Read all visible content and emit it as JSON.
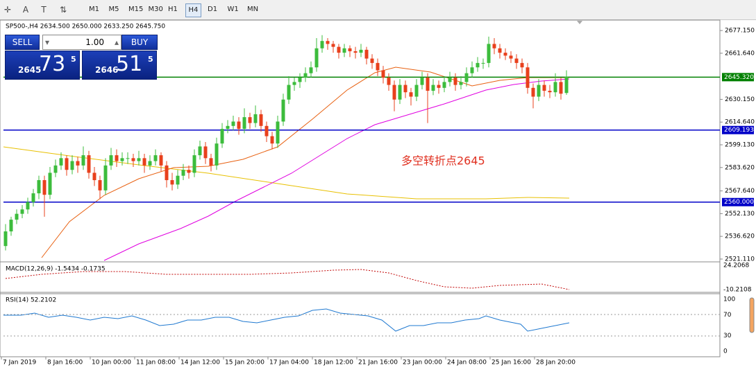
{
  "toolbar": {
    "timeframes": [
      "M1",
      "M5",
      "M15",
      "M30",
      "H1",
      "H4",
      "D1",
      "W1",
      "MN"
    ],
    "selected": "H4"
  },
  "trade_panel": {
    "sell": "SELL",
    "buy": "BUY",
    "lot": "1.00",
    "bid": {
      "big": "2645",
      "main": "73",
      "small": "5"
    },
    "ask": {
      "big": "2646",
      "main": "51",
      "small": "5"
    }
  },
  "chart_data": {
    "type": "candlestick",
    "title": "SP500-,H4  2634.500 2650.000 2633.250 2645.750",
    "up_color": "#3cbc3c",
    "down_color": "#e8401c",
    "ylim": [
      2519.2,
      2683.8
    ],
    "yticks": [
      {
        "value": 2677.15,
        "label": "2677.150"
      },
      {
        "value": 2661.64,
        "label": "2661.640"
      },
      {
        "value": 2630.15,
        "label": "2630.150"
      },
      {
        "value": 2614.64,
        "label": "2614.640"
      },
      {
        "value": 2599.13,
        "label": "2599.130"
      },
      {
        "value": 2583.62,
        "label": "2583.620"
      },
      {
        "value": 2567.64,
        "label": "2567.640"
      },
      {
        "value": 2552.13,
        "label": "2552.130"
      },
      {
        "value": 2536.62,
        "label": "2536.620"
      },
      {
        "value": 2521.11,
        "label": "2521.110"
      }
    ],
    "x_labels": [
      "7 Jan 2019",
      "8 Jan 16:00",
      "10 Jan 00:00",
      "11 Jan 08:00",
      "14 Jan 12:00",
      "15 Jan 20:00",
      "17 Jan 04:00",
      "18 Jan 12:00",
      "21 Jan 16:00",
      "23 Jan 00:00",
      "24 Jan 08:00",
      "25 Jan 16:00",
      "28 Jan 20:00"
    ],
    "levels": [
      {
        "value": 2645.32,
        "label": "2645.320",
        "color": "#008000"
      },
      {
        "value": 2609.193,
        "label": "2609.193",
        "color": "#0000c8"
      },
      {
        "value": 2560,
        "label": "2560.000",
        "color": "#0000c8"
      }
    ],
    "annotation": "多空转折点2645",
    "ohlc": [
      [
        2530,
        2545,
        2527,
        2540
      ],
      [
        2540,
        2550,
        2537,
        2548
      ],
      [
        2548,
        2555,
        2545,
        2552
      ],
      [
        2552,
        2558,
        2549,
        2555
      ],
      [
        2555,
        2563,
        2552,
        2560
      ],
      [
        2560,
        2569,
        2557,
        2566
      ],
      [
        2566,
        2578,
        2562,
        2575
      ],
      [
        2575,
        2578,
        2550,
        2565
      ],
      [
        2565,
        2584,
        2562,
        2580
      ],
      [
        2580,
        2589,
        2577,
        2585
      ],
      [
        2585,
        2594,
        2582,
        2590
      ],
      [
        2590,
        2592,
        2578,
        2582
      ],
      [
        2582,
        2592,
        2579,
        2588
      ],
      [
        2588,
        2591,
        2580,
        2585
      ],
      [
        2585,
        2598,
        2582,
        2592
      ],
      [
        2592,
        2595,
        2576,
        2580
      ],
      [
        2580,
        2584,
        2571,
        2575
      ],
      [
        2575,
        2578,
        2562,
        2568
      ],
      [
        2568,
        2590,
        2565,
        2585
      ],
      [
        2585,
        2597,
        2582,
        2592
      ],
      [
        2592,
        2596,
        2584,
        2588
      ],
      [
        2588,
        2594,
        2585,
        2590
      ],
      [
        2590,
        2594,
        2586,
        2590
      ],
      [
        2590,
        2593,
        2584,
        2588
      ],
      [
        2588,
        2595,
        2585,
        2590
      ],
      [
        2590,
        2593,
        2580,
        2585
      ],
      [
        2585,
        2592,
        2582,
        2588
      ],
      [
        2588,
        2596,
        2585,
        2592
      ],
      [
        2592,
        2594,
        2581,
        2585
      ],
      [
        2585,
        2588,
        2570,
        2575
      ],
      [
        2575,
        2580,
        2568,
        2572
      ],
      [
        2572,
        2582,
        2569,
        2578
      ],
      [
        2578,
        2586,
        2575,
        2582
      ],
      [
        2582,
        2585,
        2576,
        2580
      ],
      [
        2580,
        2596,
        2577,
        2592
      ],
      [
        2592,
        2602,
        2589,
        2598
      ],
      [
        2598,
        2601,
        2586,
        2590
      ],
      [
        2590,
        2593,
        2581,
        2585
      ],
      [
        2585,
        2604,
        2582,
        2600
      ],
      [
        2600,
        2614,
        2597,
        2610
      ],
      [
        2610,
        2616,
        2607,
        2612
      ],
      [
        2612,
        2619,
        2609,
        2615
      ],
      [
        2615,
        2618,
        2606,
        2610
      ],
      [
        2610,
        2624,
        2607,
        2618
      ],
      [
        2618,
        2621,
        2610,
        2614
      ],
      [
        2614,
        2626,
        2611,
        2620
      ],
      [
        2620,
        2623,
        2608,
        2612
      ],
      [
        2612,
        2615,
        2601,
        2605
      ],
      [
        2605,
        2608,
        2596,
        2600
      ],
      [
        2600,
        2619,
        2597,
        2615
      ],
      [
        2615,
        2634,
        2612,
        2630
      ],
      [
        2630,
        2646,
        2627,
        2640
      ],
      [
        2640,
        2645,
        2636,
        2642
      ],
      [
        2642,
        2648,
        2638,
        2645
      ],
      [
        2645,
        2652,
        2642,
        2648
      ],
      [
        2648,
        2656,
        2645,
        2652
      ],
      [
        2652,
        2672,
        2649,
        2665
      ],
      [
        2665,
        2674,
        2662,
        2670
      ],
      [
        2670,
        2672,
        2664,
        2668
      ],
      [
        2668,
        2670,
        2662,
        2666
      ],
      [
        2666,
        2668,
        2658,
        2662
      ],
      [
        2662,
        2668,
        2659,
        2665
      ],
      [
        2665,
        2667,
        2659,
        2663
      ],
      [
        2663,
        2666,
        2658,
        2662
      ],
      [
        2662,
        2668,
        2659,
        2664
      ],
      [
        2664,
        2666,
        2654,
        2658
      ],
      [
        2658,
        2661,
        2651,
        2655
      ],
      [
        2655,
        2658,
        2646,
        2650
      ],
      [
        2650,
        2653,
        2641,
        2645
      ],
      [
        2645,
        2648,
        2636,
        2640
      ],
      [
        2640,
        2643,
        2622,
        2630
      ],
      [
        2630,
        2644,
        2627,
        2640
      ],
      [
        2640,
        2643,
        2631,
        2635
      ],
      [
        2635,
        2638,
        2626,
        2632
      ],
      [
        2632,
        2644,
        2629,
        2640
      ],
      [
        2640,
        2649,
        2637,
        2645
      ],
      [
        2645,
        2648,
        2614,
        2636
      ],
      [
        2636,
        2644,
        2633,
        2640
      ],
      [
        2640,
        2643,
        2634,
        2638
      ],
      [
        2638,
        2646,
        2635,
        2642
      ],
      [
        2642,
        2649,
        2639,
        2645
      ],
      [
        2645,
        2648,
        2636,
        2640
      ],
      [
        2640,
        2646,
        2637,
        2642
      ],
      [
        2642,
        2652,
        2639,
        2648
      ],
      [
        2648,
        2656,
        2645,
        2652
      ],
      [
        2652,
        2659,
        2649,
        2655
      ],
      [
        2655,
        2658,
        2651,
        2655
      ],
      [
        2655,
        2673,
        2652,
        2668
      ],
      [
        2668,
        2672,
        2661,
        2665
      ],
      [
        2665,
        2668,
        2658,
        2662
      ],
      [
        2662,
        2665,
        2657,
        2660
      ],
      [
        2660,
        2663,
        2655,
        2658
      ],
      [
        2658,
        2661,
        2651,
        2655
      ],
      [
        2655,
        2658,
        2648,
        2652
      ],
      [
        2652,
        2655,
        2634,
        2638
      ],
      [
        2638,
        2641,
        2624,
        2632
      ],
      [
        2632,
        2644,
        2629,
        2640
      ],
      [
        2640,
        2643,
        2632,
        2636
      ],
      [
        2636,
        2640,
        2631,
        2635
      ],
      [
        2635,
        2648,
        2632,
        2642
      ],
      [
        2642,
        2645,
        2630,
        2634
      ],
      [
        2634.5,
        2650,
        2633.25,
        2645.75
      ]
    ],
    "macd": {
      "label": "MACD(12,26,9) -1.5434 -0.1735",
      "yticks": [
        {
          "value": 24.2068,
          "label": "24.2068"
        },
        {
          "value": -10.2108,
          "label": "-10.2108"
        }
      ]
    },
    "rsi": {
      "label": "RSI(14) 52.2102",
      "ylim": [
        0,
        100
      ],
      "yticks": [
        100,
        70,
        30,
        0
      ]
    }
  }
}
